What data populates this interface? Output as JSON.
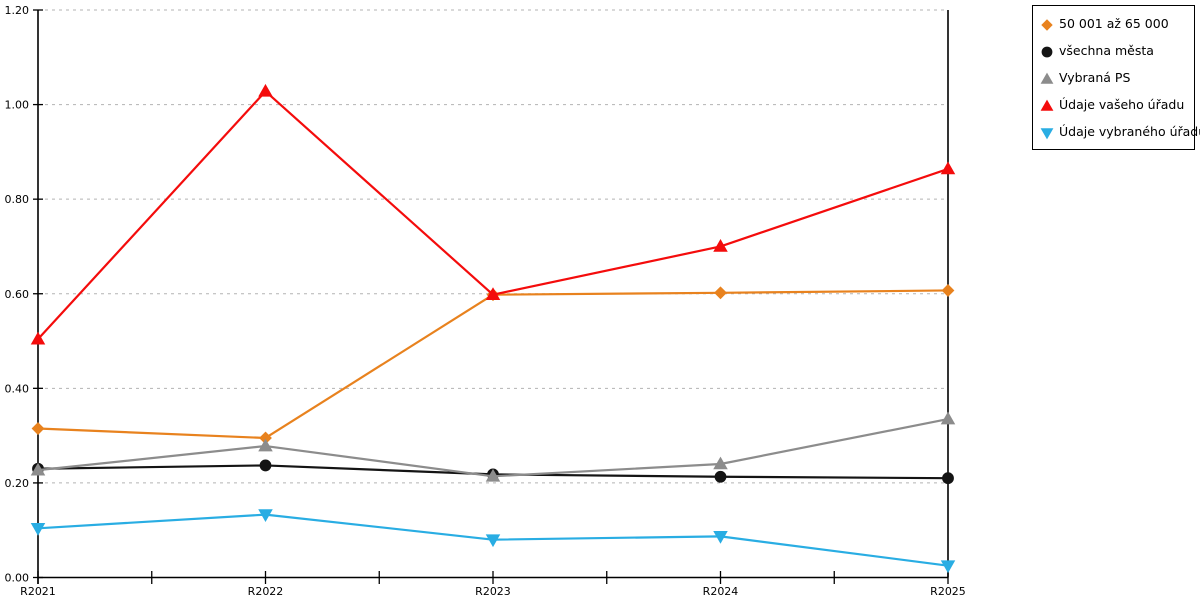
{
  "chart_data": {
    "type": "line",
    "title": "",
    "xlabel": "",
    "ylabel": "",
    "categories": [
      "R2021",
      "R2022",
      "R2023",
      "R2024",
      "R2025"
    ],
    "series": [
      {
        "name": "50 001 až 65 000",
        "marker": "diamond",
        "color": "#E8821E",
        "values": [
          0.315,
          0.295,
          0.598,
          0.602,
          0.607
        ]
      },
      {
        "name": "všechna města",
        "marker": "circle",
        "color": "#141414",
        "values": [
          0.23,
          0.237,
          0.218,
          0.213,
          0.21
        ]
      },
      {
        "name": "Vybraná PS",
        "marker": "triangle-up",
        "color": "#8C8C8C",
        "values": [
          0.227,
          0.278,
          0.214,
          0.24,
          0.335
        ]
      },
      {
        "name": "Údaje vašeho úřadu",
        "marker": "triangle-up",
        "color": "#F40C0C",
        "values": [
          0.504,
          1.028,
          0.598,
          0.7,
          0.864
        ]
      },
      {
        "name": "Údaje vybraného úřadu",
        "marker": "triangle-down",
        "color": "#29ADE3",
        "values": [
          0.104,
          0.133,
          0.08,
          0.087,
          0.025
        ]
      }
    ],
    "ylim": [
      0,
      1.2
    ],
    "ytick_step": 0.2,
    "ytick_labels": [
      "0.00",
      "0.20",
      "0.40",
      "0.60",
      "0.80",
      "1.00",
      "1.20"
    ],
    "grid": {
      "horizontal": true,
      "style": "dashed",
      "color": "#B3B3B3"
    },
    "minor_x_ticks": true,
    "axis_color": "#000000",
    "legend_position": "outside-top-right"
  }
}
